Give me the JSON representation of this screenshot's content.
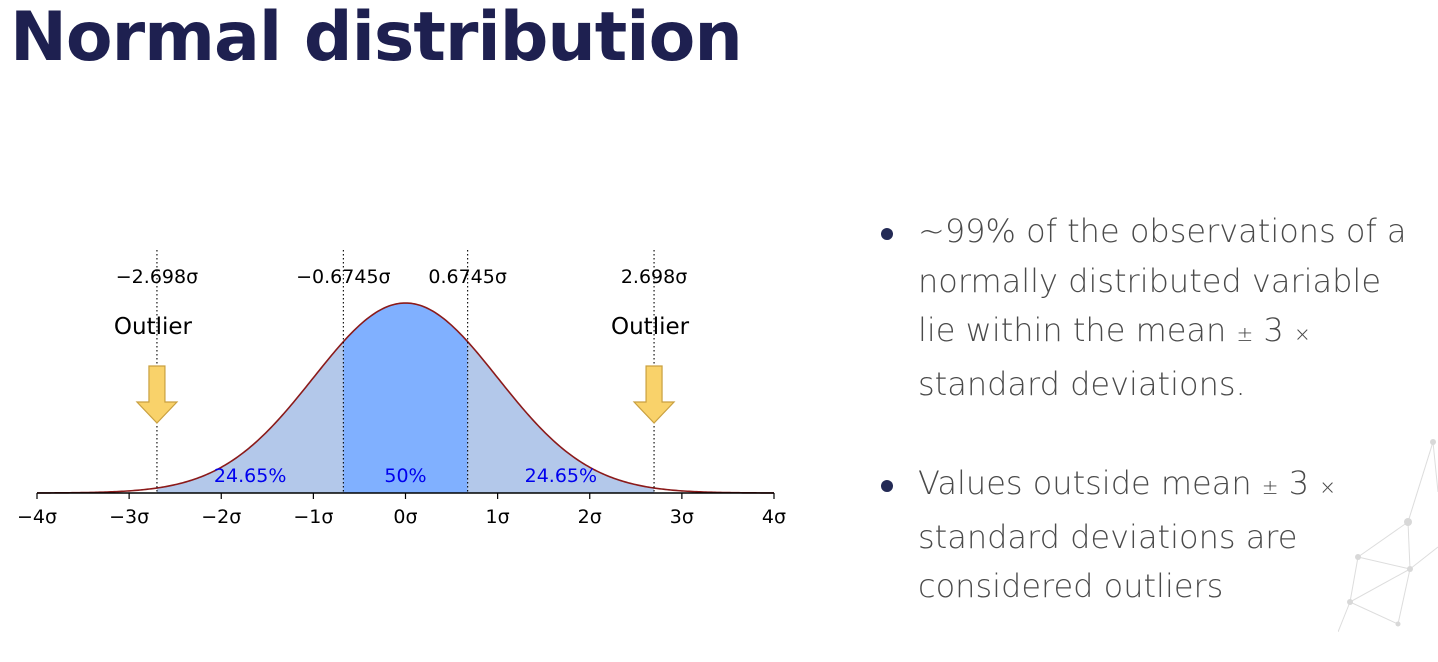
{
  "slide": {
    "title": "Normal distribution",
    "bullets": [
      {
        "parts": [
          "~99% of the observations of a normally distributed variable lie within the mean ",
          "±",
          " 3 ",
          "×",
          " standard deviations."
        ]
      },
      {
        "parts": [
          "Values outside mean ",
          "±",
          " 3 ",
          "×",
          " standard deviations are considered outliers"
        ]
      }
    ]
  },
  "colors": {
    "title": "#1e2050",
    "center_fill": "#80b0ff",
    "side_fill": "#b3c8ea",
    "curve": "#8b1a1a",
    "pct_text": "#0000ee",
    "arrow_fill": "#f9d26a",
    "arrow_stroke": "#c9a040",
    "bullet": "#232a55",
    "body_text": "#4a4a4a"
  },
  "chart_data": {
    "type": "area",
    "xlim": [
      -4,
      4
    ],
    "x_ticks": [
      -4,
      -3,
      -2,
      -1,
      0,
      1,
      2,
      3,
      4
    ],
    "x_tick_labels": [
      "−4σ",
      "−3σ",
      "−2σ",
      "−1σ",
      "0σ",
      "1σ",
      "2σ",
      "3σ",
      "4σ"
    ],
    "quantile_markers": [
      {
        "x": -2.698,
        "label": "−2.698σ"
      },
      {
        "x": -0.6745,
        "label": "−0.6745σ"
      },
      {
        "x": 0.6745,
        "label": "0.6745σ"
      },
      {
        "x": 2.698,
        "label": "2.698σ"
      }
    ],
    "regions": [
      {
        "from": -2.698,
        "to": -0.6745,
        "label": "24.65%",
        "shade": "side"
      },
      {
        "from": -0.6745,
        "to": 0.6745,
        "label": "50%",
        "shade": "center"
      },
      {
        "from": 0.6745,
        "to": 2.698,
        "label": "24.65%",
        "shade": "side"
      }
    ],
    "outliers": [
      {
        "x": -2.698,
        "label": "Outlier"
      },
      {
        "x": 2.698,
        "label": "Outlier"
      }
    ]
  }
}
